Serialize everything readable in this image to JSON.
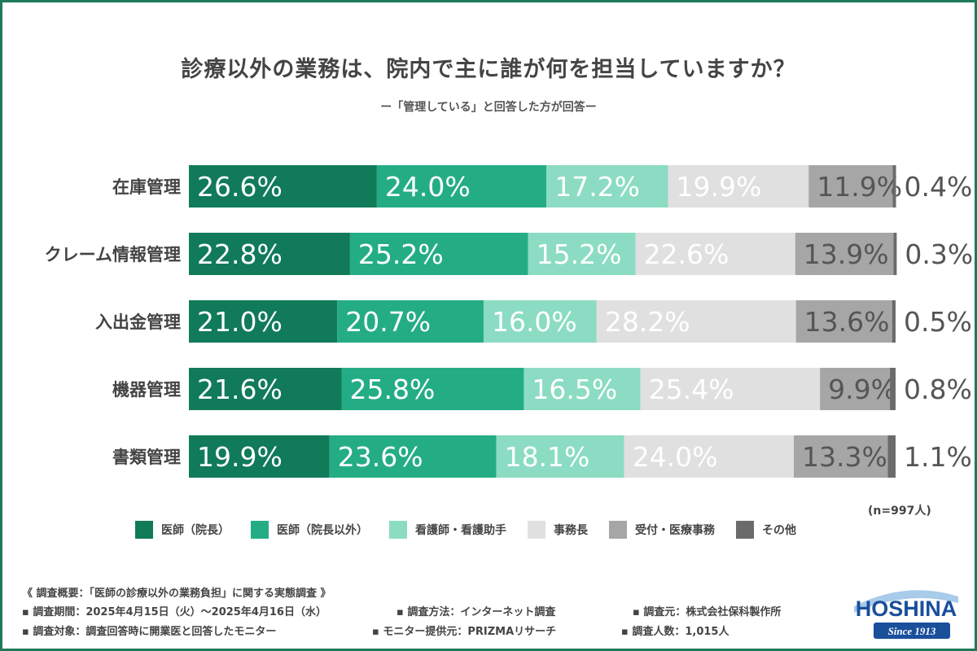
{
  "title": "診療以外の業務は、院内で主に誰が何を担当していますか？",
  "subtitle": "ー「管理している」と回答した方が回答ー",
  "n_label": "(n=997人)",
  "chart_data": {
    "type": "bar",
    "orientation": "horizontal",
    "stacked": true,
    "percent_stacked": true,
    "categories": [
      "在庫管理",
      "クレーム情報管理",
      "入出金管理",
      "機器管理",
      "書類管理"
    ],
    "series": [
      {
        "name": "医師（院長）",
        "color": "#107a59",
        "text_color": "#ffffff",
        "values": [
          26.6,
          22.8,
          21.0,
          21.6,
          19.9
        ]
      },
      {
        "name": "医師（院長以外）",
        "color": "#24ad85",
        "text_color": "#ffffff",
        "values": [
          24.0,
          25.2,
          20.7,
          25.8,
          23.6
        ]
      },
      {
        "name": "看護師・看護助手",
        "color": "#8bdcc2",
        "text_color": "#ffffff",
        "values": [
          17.2,
          15.2,
          16.0,
          16.5,
          18.1
        ]
      },
      {
        "name": "事務長",
        "color": "#e0e0e0",
        "text_color": "#ffffff",
        "values": [
          19.9,
          22.6,
          28.2,
          25.4,
          24.0
        ]
      },
      {
        "name": "受付・医療事務",
        "color": "#a6a6a6",
        "text_color": "#555555",
        "values": [
          11.9,
          13.9,
          13.6,
          9.9,
          13.3
        ]
      },
      {
        "name": "その他",
        "color": "#6b6b6b",
        "text_color": "#555555",
        "values": [
          0.4,
          0.3,
          0.5,
          0.8,
          1.1
        ]
      }
    ],
    "value_suffix": "%",
    "legend_position": "bottom",
    "grid": false
  },
  "survey": {
    "header": "《 調査概要：「医師の診療以外の業務負担」に関する実態調査 》",
    "row1": [
      "▪ 調査期間：2025年4月15日（火）〜2025年4月16日（水）",
      "▪ 調査方法：インターネット調査",
      "▪ 調査元：株式会社保科製作所"
    ],
    "row2": [
      "▪ 調査対象：調査回答時に開業医と回答したモニター",
      "▪ モニター提供元：PRIZMAリサーチ",
      "▪ 調査人数：1,015人"
    ]
  },
  "logo": {
    "name": "HOSHINA",
    "tagline": "Since 1913",
    "color": "#1a4f9c"
  }
}
